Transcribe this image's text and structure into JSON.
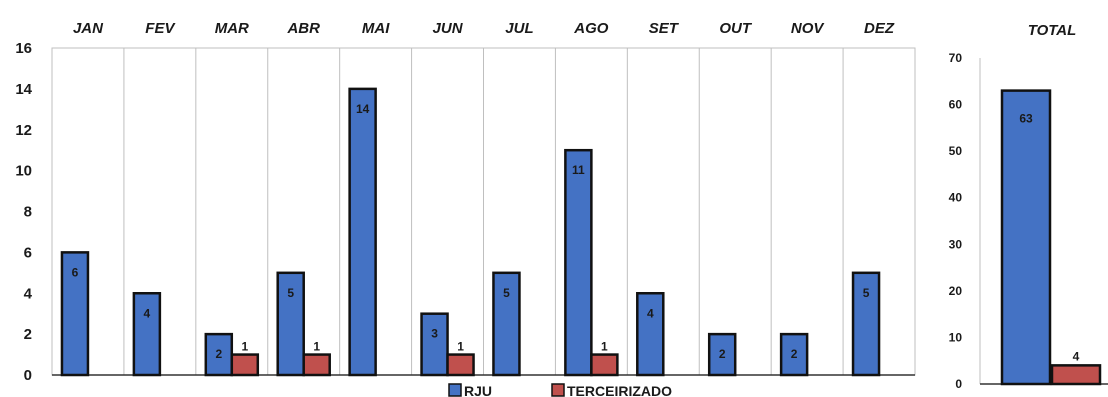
{
  "colors": {
    "blue": "#4472C4",
    "red": "#C0504D",
    "border": "#111111",
    "grid": "#bfbfbf"
  },
  "legend": {
    "series_1": "RJU",
    "series_2": "TERCEIRIZADO"
  },
  "chart_data": [
    {
      "type": "bar",
      "categories": [
        "JAN",
        "FEV",
        "MAR",
        "ABR",
        "MAI",
        "JUN",
        "JUL",
        "AGO",
        "SET",
        "OUT",
        "NOV",
        "DEZ"
      ],
      "series": [
        {
          "name": "RJU",
          "values": [
            6,
            4,
            2,
            5,
            14,
            3,
            5,
            11,
            4,
            2,
            2,
            5
          ]
        },
        {
          "name": "TERCEIRIZADO",
          "values": [
            0,
            0,
            1,
            1,
            0,
            1,
            0,
            1,
            0,
            0,
            0,
            0
          ]
        }
      ],
      "ylim": [
        0,
        16
      ],
      "yticks": [
        0,
        2,
        4,
        6,
        8,
        10,
        12,
        14,
        16
      ],
      "grid": "vertical category separators",
      "legend_position": "bottom"
    },
    {
      "type": "bar",
      "title": "TOTAL",
      "categories": [
        "TOTAL"
      ],
      "series": [
        {
          "name": "RJU",
          "values": [
            63
          ]
        },
        {
          "name": "TERCEIRIZADO",
          "values": [
            4
          ]
        }
      ],
      "ylim": [
        0,
        70
      ],
      "yticks": [
        0,
        10,
        20,
        30,
        40,
        50,
        60,
        70
      ]
    }
  ]
}
